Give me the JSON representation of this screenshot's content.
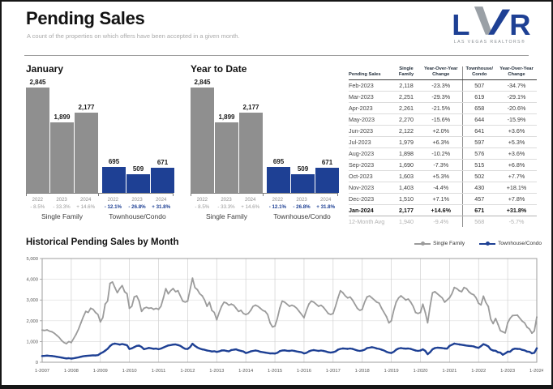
{
  "page": {
    "title": "Pending Sales",
    "subtitle": "A count of the properties on which offers have been accepted in a given month."
  },
  "logo": {
    "letters": [
      "L",
      "V",
      "R"
    ],
    "tagline": "LAS VEGAS REALTORS®",
    "blue": "#1e4094",
    "silver": "#9aa0a6"
  },
  "colors": {
    "single_family": "#8f8f8f",
    "single_family_line": "#9b9b9b",
    "townhouse": "#1e4094",
    "pct_gray": "#9a9a9a",
    "year_label": "#8a8a8a"
  },
  "chart_data": [
    {
      "type": "bar",
      "title": "January",
      "ymax": 2845,
      "groups": [
        {
          "label": "Single Family",
          "color": "#8f8f8f",
          "pct_color": "#9a9a9a",
          "pct_bold": false,
          "bars": [
            {
              "year": "2022",
              "value": 2845,
              "label": "2,845",
              "change": "- 8.5%"
            },
            {
              "year": "2023",
              "value": 1899,
              "label": "1,899",
              "change": "- 33.3%"
            },
            {
              "year": "2024",
              "value": 2177,
              "label": "2,177",
              "change": "+ 14.6%"
            }
          ]
        },
        {
          "label": "Townhouse/Condo",
          "color": "#1e4094",
          "pct_color": "#1e4094",
          "pct_bold": true,
          "bars": [
            {
              "year": "2022",
              "value": 695,
              "label": "695",
              "change": "- 12.1%"
            },
            {
              "year": "2023",
              "value": 509,
              "label": "509",
              "change": "- 26.8%"
            },
            {
              "year": "2024",
              "value": 671,
              "label": "671",
              "change": "+ 31.8%"
            }
          ]
        }
      ]
    },
    {
      "type": "bar",
      "title": "Year to Date",
      "ymax": 2845,
      "groups": [
        {
          "label": "Single Family",
          "color": "#8f8f8f",
          "pct_color": "#9a9a9a",
          "pct_bold": false,
          "bars": [
            {
              "year": "2022",
              "value": 2845,
              "label": "2,845",
              "change": "- 8.5%"
            },
            {
              "year": "2023",
              "value": 1899,
              "label": "1,899",
              "change": "- 33.3%"
            },
            {
              "year": "2024",
              "value": 2177,
              "label": "2,177",
              "change": "+ 14.6%"
            }
          ]
        },
        {
          "label": "Townhouse/Condo",
          "color": "#1e4094",
          "pct_color": "#1e4094",
          "pct_bold": true,
          "bars": [
            {
              "year": "2022",
              "value": 695,
              "label": "695",
              "change": "- 12.1%"
            },
            {
              "year": "2023",
              "value": 509,
              "label": "509",
              "change": "- 26.8%"
            },
            {
              "year": "2024",
              "value": 671,
              "label": "671",
              "change": "+ 31.8%"
            }
          ]
        }
      ]
    },
    {
      "type": "line",
      "title": "Historical Pending Sales by Month",
      "x_start": "1-2007",
      "x_end": "1-2024",
      "x_interval": "monthly",
      "x_tick_labels": [
        "1-2007",
        "1-2008",
        "1-2009",
        "1-2010",
        "1-2011",
        "1-2012",
        "1-2013",
        "1-2014",
        "1-2015",
        "1-2016",
        "1-2017",
        "1-2018",
        "1-2019",
        "1-2020",
        "1-2021",
        "1-2022",
        "1-2023",
        "1-2024"
      ],
      "ylim": [
        0,
        5000
      ],
      "ytick_labels": [
        "0",
        "1,000",
        "2,000",
        "3,000",
        "4,000",
        "5,000"
      ],
      "grid": "on",
      "legend_position": "top-right",
      "series": [
        {
          "name": "Single Family",
          "color": "#9b9b9b",
          "values": [
            1550,
            1530,
            1560,
            1500,
            1470,
            1400,
            1300,
            1200,
            1050,
            950,
            900,
            1000,
            950,
            1150,
            1350,
            1600,
            1900,
            2200,
            2450,
            2400,
            2600,
            2550,
            2400,
            2300,
            1950,
            2150,
            2800,
            2950,
            3800,
            3870,
            3600,
            3350,
            3550,
            3700,
            3400,
            3300,
            2600,
            2700,
            3150,
            3200,
            2950,
            2450,
            2600,
            2650,
            2600,
            2620,
            2550,
            2600,
            2550,
            2700,
            3100,
            3550,
            3300,
            3450,
            3550,
            3400,
            3450,
            3200,
            2950,
            2900,
            2950,
            3500,
            4050,
            3600,
            3500,
            3300,
            3200,
            3000,
            2700,
            2900,
            2500,
            2400,
            2050,
            2400,
            2700,
            2900,
            2850,
            2750,
            2800,
            2750,
            2600,
            2450,
            2500,
            2350,
            2300,
            2350,
            2500,
            2700,
            2750,
            2700,
            2600,
            2500,
            2450,
            2300,
            1900,
            1700,
            1750,
            2100,
            2600,
            2950,
            2900,
            2800,
            2700,
            2750,
            2700,
            2600,
            2450,
            2300,
            2150,
            2500,
            2800,
            2950,
            2900,
            2800,
            2700,
            2750,
            2650,
            2500,
            2350,
            2300,
            2350,
            2700,
            3100,
            3450,
            3350,
            3200,
            3100,
            3150,
            3000,
            2800,
            2600,
            2500,
            2550,
            2900,
            3150,
            3200,
            3100,
            3000,
            2900,
            2850,
            2600,
            2400,
            2200,
            1900,
            2000,
            2500,
            2900,
            3100,
            3200,
            3100,
            3000,
            3050,
            2900,
            2700,
            2400,
            2350,
            2400,
            2800,
            2400,
            1900,
            2700,
            3350,
            3400,
            3300,
            3200,
            3100,
            2900,
            3000,
            3109,
            3300,
            3600,
            3550,
            3450,
            3400,
            3600,
            3550,
            3400,
            3300,
            3250,
            3100,
            2845,
            2761,
            3184,
            2880,
            2690,
            2080,
            1862,
            2114,
            1823,
            1522,
            1468,
            1410,
            1899,
            2118,
            2251,
            2261,
            2270,
            2122,
            1979,
            1898,
            1690,
            1603,
            1403,
            1510,
            2177
          ]
        },
        {
          "name": "Townhouse/Condo",
          "color": "#1e4094",
          "values": [
            300,
            310,
            320,
            310,
            300,
            285,
            265,
            245,
            225,
            205,
            185,
            195,
            175,
            190,
            215,
            240,
            265,
            290,
            305,
            315,
            325,
            335,
            330,
            345,
            420,
            480,
            560,
            650,
            780,
            870,
            900,
            880,
            850,
            880,
            850,
            820,
            640,
            670,
            730,
            790,
            800,
            740,
            630,
            660,
            690,
            670,
            650,
            660,
            630,
            660,
            710,
            760,
            810,
            830,
            850,
            860,
            830,
            790,
            710,
            650,
            640,
            730,
            890,
            790,
            710,
            660,
            620,
            600,
            565,
            545,
            520,
            530,
            500,
            525,
            565,
            575,
            545,
            525,
            585,
            605,
            620,
            580,
            545,
            520,
            445,
            475,
            525,
            545,
            565,
            545,
            505,
            485,
            465,
            445,
            425,
            430,
            420,
            455,
            535,
            565,
            575,
            555,
            545,
            565,
            545,
            520,
            500,
            480,
            425,
            455,
            525,
            565,
            585,
            565,
            545,
            565,
            545,
            520,
            485,
            465,
            485,
            525,
            605,
            645,
            665,
            655,
            645,
            665,
            645,
            605,
            565,
            545,
            565,
            605,
            685,
            705,
            725,
            705,
            665,
            645,
            605,
            565,
            505,
            465,
            445,
            505,
            605,
            665,
            685,
            665,
            655,
            665,
            645,
            605,
            565,
            545,
            565,
            625,
            545,
            385,
            485,
            625,
            685,
            705,
            695,
            685,
            665,
            655,
            791,
            845,
            900,
            880,
            860,
            845,
            825,
            805,
            790,
            780,
            760,
            720,
            695,
            776,
            873,
            829,
            766,
            619,
            567,
            556,
            482,
            466,
            364,
            424,
            509,
            507,
            619,
            658,
            644,
            641,
            597,
            576,
            515,
            502,
            430,
            457,
            671
          ]
        }
      ]
    }
  ],
  "table": {
    "headers": [
      "Pending Sales",
      "Single\nFamily",
      "Year-Over-Year\nChange",
      "Townhouse/\nCondo",
      "Year-Over-Year\nChange"
    ],
    "rows": [
      [
        "Feb-2023",
        "2,118",
        "-23.3%",
        "507",
        "-34.7%"
      ],
      [
        "Mar-2023",
        "2,251",
        "-29.3%",
        "619",
        "-29.1%"
      ],
      [
        "Apr-2023",
        "2,261",
        "-21.5%",
        "658",
        "-20.6%"
      ],
      [
        "May-2023",
        "2,270",
        "-15.6%",
        "644",
        "-15.9%"
      ],
      [
        "Jun-2023",
        "2,122",
        "+2.0%",
        "641",
        "+3.6%"
      ],
      [
        "Jul-2023",
        "1,979",
        "+6.3%",
        "597",
        "+5.3%"
      ],
      [
        "Aug-2023",
        "1,898",
        "-10.2%",
        "576",
        "+3.6%"
      ],
      [
        "Sep-2023",
        "1,690",
        "-7.3%",
        "515",
        "+6.8%"
      ],
      [
        "Oct-2023",
        "1,603",
        "+5.3%",
        "502",
        "+7.7%"
      ],
      [
        "Nov-2023",
        "1,403",
        "-4.4%",
        "430",
        "+18.1%"
      ],
      [
        "Dec-2023",
        "1,510",
        "+7.1%",
        "457",
        "+7.8%"
      ],
      [
        "Jan-2024",
        "2,177",
        "+14.6%",
        "671",
        "+31.8%"
      ]
    ],
    "highlight_row": "Jan-2024",
    "footer": [
      "12-Month Avg",
      "1,940",
      "-9.4%",
      "568",
      "-5.7%"
    ]
  }
}
